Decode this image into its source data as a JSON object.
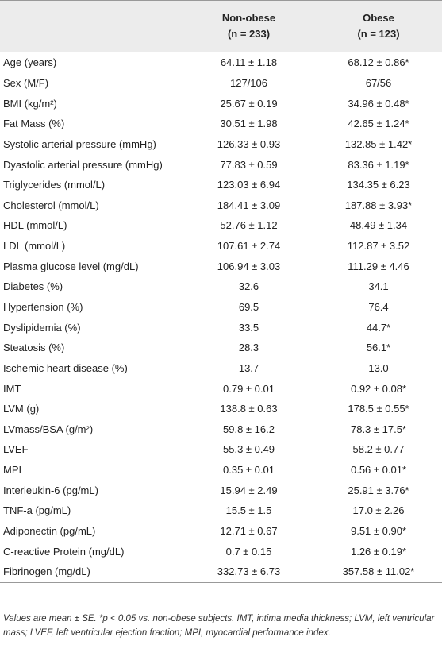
{
  "table": {
    "header": [
      "",
      "Non-obese",
      "Obese"
    ],
    "header_n": [
      "",
      "(n = 233)",
      "(n = 123)"
    ],
    "rows": [
      [
        "Age (years)",
        "64.11 ± 1.18",
        "68.12 ± 0.86*"
      ],
      [
        "Sex (M/F)",
        "127/106",
        "67/56"
      ],
      [
        "BMI (kg/m²)",
        "25.67 ± 0.19",
        "34.96 ± 0.48*"
      ],
      [
        "Fat Mass (%)",
        "30.51 ± 1.98",
        "42.65 ± 1.24*"
      ],
      [
        "Systolic arterial pressure (mmHg)",
        "126.33 ± 0.93",
        "132.85 ± 1.42*"
      ],
      [
        "Dyastolic arterial pressure (mmHg)",
        "77.83 ± 0.59",
        "83.36 ± 1.19*"
      ],
      [
        "Triglycerides (mmol/L)",
        "123.03 ± 6.94",
        "134.35 ± 6.23"
      ],
      [
        "Cholesterol (mmol/L)",
        "184.41 ± 3.09",
        "187.88 ± 3.93*"
      ],
      [
        "HDL (mmol/L)",
        "52.76 ± 1.12",
        "48.49 ± 1.34"
      ],
      [
        "LDL (mmol/L)",
        "107.61 ± 2.74",
        "112.87 ± 3.52"
      ],
      [
        "Plasma glucose level (mg/dL)",
        "106.94 ± 3.03",
        "111.29 ± 4.46"
      ],
      [
        "Diabetes (%)",
        "32.6",
        "34.1"
      ],
      [
        "Hypertension (%)",
        "69.5",
        "76.4"
      ],
      [
        "Dyslipidemia (%)",
        "33.5",
        "44.7*"
      ],
      [
        "Steatosis (%)",
        "28.3",
        "56.1*"
      ],
      [
        "Ischemic heart disease (%)",
        "13.7",
        "13.0"
      ],
      [
        "IMT",
        "0.79 ± 0.01",
        "0.92 ± 0.08*"
      ],
      [
        "LVM (g)",
        "138.8 ± 0.63",
        "178.5 ± 0.55*"
      ],
      [
        "LVmass/BSA (g/m²)",
        "59.8 ± 16.2",
        "78.3 ± 17.5*"
      ],
      [
        "LVEF",
        "55.3 ± 0.49",
        "58.2 ± 0.77"
      ],
      [
        "MPI",
        "0.35 ± 0.01",
        "0.56 ± 0.01*"
      ],
      [
        "Interleukin-6 (pg/mL)",
        "15.94 ± 2.49",
        "25.91 ± 3.76*"
      ],
      [
        "TNF-a (pg/mL)",
        "15.5 ± 1.5",
        "17.0 ± 2.26"
      ],
      [
        "Adiponectin (pg/mL)",
        "12.71 ± 0.67",
        "9.51 ± 0.90*"
      ],
      [
        "C-reactive Protein (mg/dL)",
        "0.7 ± 0.15",
        "1.26 ± 0.19*"
      ],
      [
        "Fibrinogen (mg/dL)",
        "332.73 ± 6.73",
        "357.58 ± 11.02*"
      ]
    ]
  },
  "footnote": "Values are mean ± SE. *p < 0.05 vs. non-obese subjects. IMT, intima media thickness; LVM, left ventricular mass; LVEF, left ventricular ejection fraction; MPI, myocardial performance index."
}
